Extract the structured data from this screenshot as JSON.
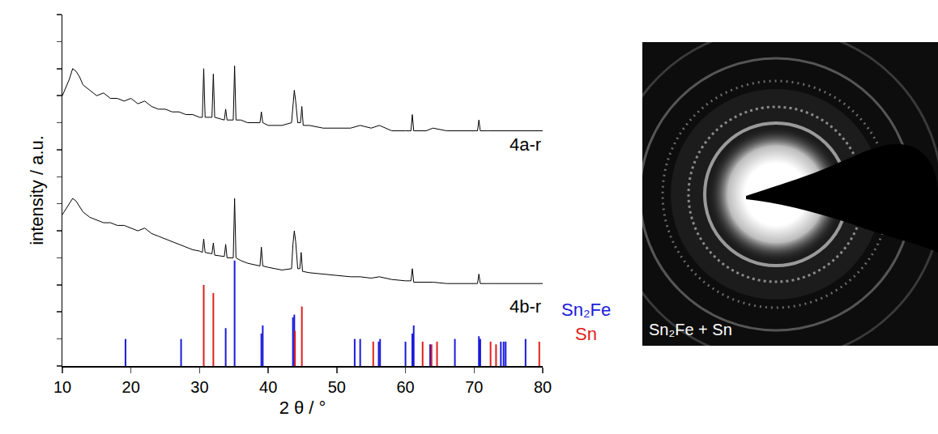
{
  "chart_data": {
    "type": "line",
    "x_label": "2 θ / °",
    "y_label": "intensity / a.u.",
    "xlim": [
      10,
      80
    ],
    "xticks": [
      10,
      20,
      30,
      40,
      50,
      60,
      70,
      80
    ],
    "ylim": [
      0,
      13
    ],
    "yticks": [
      0,
      1,
      2,
      3,
      4,
      5,
      6,
      7,
      8,
      9,
      10,
      11,
      12,
      13
    ],
    "tick_labels": "x",
    "grid": false,
    "series": [
      {
        "name": "4a-r",
        "type": "line",
        "color": "#000000",
        "x": [
          10,
          11,
          11.5,
          12,
          12.5,
          13,
          14,
          15,
          16,
          17,
          18,
          19,
          20,
          21,
          22,
          23,
          24,
          25,
          26,
          27,
          28,
          29,
          30,
          30.4,
          30.6,
          30.8,
          31.8,
          32.0,
          32.2,
          33.6,
          33.8,
          34.0,
          34.9,
          35.1,
          35.3,
          36,
          37,
          38,
          38.8,
          39.0,
          39.2,
          40,
          41,
          42,
          43.4,
          43.6,
          43.8,
          44.0,
          44.3,
          44.7,
          44.9,
          45.1,
          46,
          48,
          50,
          52,
          53.4,
          55,
          56.2,
          58,
          60,
          60.8,
          61.0,
          61.2,
          63,
          64,
          66,
          68,
          70.5,
          70.7,
          70.9,
          72,
          74,
          76,
          78,
          80
        ],
        "values": [
          10.0,
          10.6,
          11.0,
          10.9,
          10.7,
          10.4,
          10.2,
          10.0,
          10.1,
          9.9,
          9.9,
          9.8,
          9.9,
          9.7,
          9.8,
          9.6,
          9.5,
          9.5,
          9.4,
          9.4,
          9.3,
          9.3,
          9.2,
          9.2,
          11.0,
          9.2,
          9.2,
          10.8,
          9.2,
          9.1,
          9.5,
          9.1,
          9.1,
          11.1,
          9.1,
          9.1,
          9.0,
          9.0,
          9.0,
          9.4,
          9.0,
          8.9,
          8.9,
          8.9,
          9.0,
          9.7,
          10.2,
          9.8,
          9.0,
          9.0,
          9.6,
          8.9,
          8.9,
          8.8,
          8.8,
          8.8,
          8.9,
          8.8,
          8.9,
          8.7,
          8.7,
          8.7,
          9.3,
          8.7,
          8.7,
          8.8,
          8.7,
          8.7,
          8.7,
          9.1,
          8.7,
          8.7,
          8.7,
          8.7,
          8.7,
          8.7
        ]
      },
      {
        "name": "4b-r",
        "type": "line",
        "color": "#000000",
        "x": [
          10,
          11,
          11.5,
          12,
          12.5,
          13,
          14,
          15,
          16,
          17,
          18,
          19,
          20,
          21,
          22,
          23,
          24,
          25,
          26,
          27,
          28,
          29,
          30,
          30.4,
          30.6,
          30.8,
          31.8,
          32.0,
          32.2,
          33.6,
          33.8,
          34.0,
          34.9,
          35.1,
          35.3,
          36,
          37,
          38,
          38.8,
          39.0,
          39.2,
          40,
          41,
          42,
          43.4,
          43.6,
          43.8,
          44.0,
          44.3,
          44.6,
          44.8,
          45.0,
          46,
          48,
          50,
          52,
          53.4,
          55,
          56.2,
          58,
          60,
          60.8,
          61.0,
          61.2,
          63,
          64,
          66,
          68,
          70.5,
          70.7,
          70.9,
          72,
          74,
          76,
          78,
          80
        ],
        "values": [
          5.6,
          6.0,
          6.2,
          6.1,
          5.9,
          5.7,
          5.5,
          5.4,
          5.3,
          5.3,
          5.2,
          5.2,
          5.1,
          5.0,
          5.1,
          4.9,
          4.8,
          4.7,
          4.6,
          4.5,
          4.4,
          4.3,
          4.25,
          4.2,
          4.7,
          4.2,
          4.15,
          4.55,
          4.1,
          4.05,
          4.5,
          4.0,
          4.0,
          6.2,
          4.0,
          3.9,
          3.8,
          3.75,
          3.7,
          4.4,
          3.7,
          3.65,
          3.6,
          3.55,
          3.6,
          4.5,
          5.0,
          4.6,
          3.6,
          3.6,
          4.2,
          3.5,
          3.45,
          3.4,
          3.35,
          3.3,
          3.3,
          3.25,
          3.3,
          3.2,
          3.15,
          3.15,
          3.6,
          3.1,
          3.1,
          3.1,
          3.05,
          3.05,
          3.05,
          3.4,
          3.05,
          3.05,
          3.05,
          3.05,
          3.05,
          3.05
        ]
      },
      {
        "name": "Sn₂Fe",
        "type": "stick",
        "color": "#1a1adb",
        "x": [
          19.2,
          27.3,
          33.8,
          35.1,
          39.0,
          39.2,
          43.6,
          43.8,
          52.6,
          53.4,
          56.1,
          56.3,
          60.0,
          61.0,
          61.2,
          63.6,
          67.2,
          70.7,
          70.9,
          73.9,
          74.3,
          74.6,
          77.5
        ],
        "values": [
          1.0,
          1.0,
          1.4,
          3.9,
          1.2,
          1.5,
          1.8,
          1.9,
          1.0,
          1.0,
          0.9,
          1.0,
          0.9,
          1.2,
          1.5,
          0.8,
          1.0,
          1.1,
          1.0,
          0.9,
          0.9,
          0.9,
          1.0
        ]
      },
      {
        "name": "Sn",
        "type": "stick",
        "color": "#e0201b",
        "x": [
          30.6,
          32.0,
          43.9,
          44.9,
          55.3,
          62.5,
          63.8,
          64.6,
          72.4,
          73.2,
          79.5
        ],
        "values": [
          3.0,
          2.7,
          1.3,
          2.2,
          0.9,
          0.9,
          0.8,
          0.9,
          0.9,
          0.8,
          0.9
        ]
      }
    ]
  },
  "image": {
    "caption": "Sn₂Fe + Sn"
  }
}
